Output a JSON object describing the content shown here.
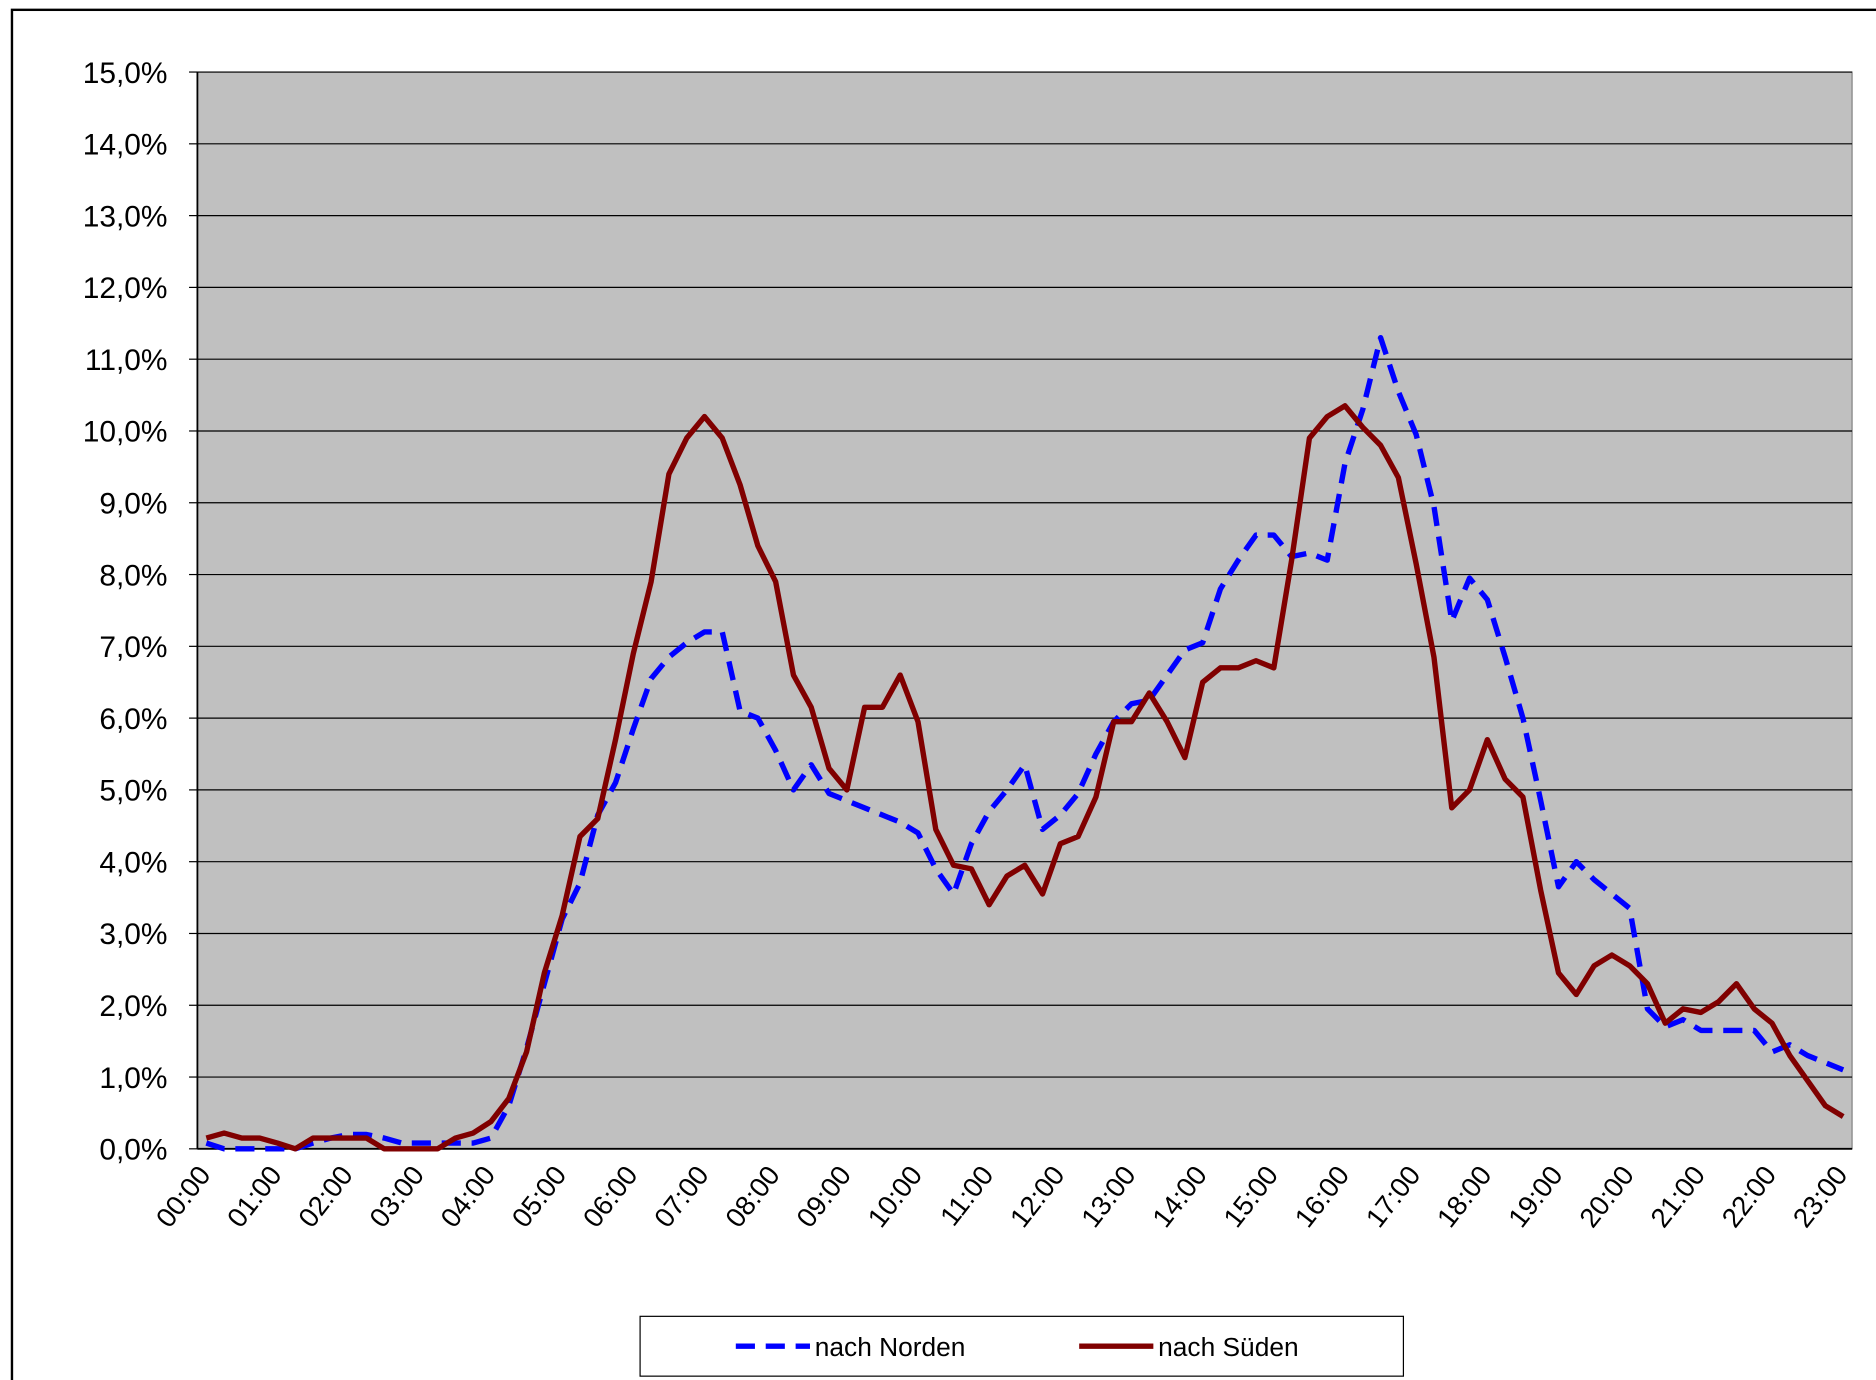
{
  "chart_data": {
    "type": "line",
    "categories": [
      "00:00",
      null,
      null,
      null,
      "01:00",
      null,
      null,
      null,
      "02:00",
      null,
      null,
      null,
      "03:00",
      null,
      null,
      null,
      "04:00",
      null,
      null,
      null,
      "05:00",
      null,
      null,
      null,
      "06:00",
      null,
      null,
      null,
      "07:00",
      null,
      null,
      null,
      "08:00",
      null,
      null,
      null,
      "09:00",
      null,
      null,
      null,
      "10:00",
      null,
      null,
      null,
      "11:00",
      null,
      null,
      null,
      "12:00",
      null,
      null,
      null,
      "13:00",
      null,
      null,
      null,
      "14:00",
      null,
      null,
      null,
      "15:00",
      null,
      null,
      null,
      "16:00",
      null,
      null,
      null,
      "17:00",
      null,
      null,
      null,
      "18:00",
      null,
      null,
      null,
      "19:00",
      null,
      null,
      null,
      "20:00",
      null,
      null,
      null,
      "21:00",
      null,
      null,
      null,
      "22:00",
      null,
      null,
      null,
      "23:00"
    ],
    "series": [
      {
        "name": "nach Norden",
        "color": "#0000ff",
        "style": "dashed",
        "values": [
          0.08,
          0,
          0,
          0,
          0,
          0,
          0.08,
          0.15,
          0.2,
          0.2,
          0.15,
          0.08,
          0.08,
          0.08,
          0.08,
          0.08,
          0.15,
          0.6,
          1.4,
          2.3,
          3.2,
          3.7,
          4.65,
          5.1,
          5.85,
          6.55,
          6.85,
          7.05,
          7.2,
          7.2,
          6.1,
          6.0,
          5.55,
          5.0,
          5.35,
          4.95,
          4.85,
          4.75,
          4.65,
          4.55,
          4.4,
          3.9,
          3.55,
          4.25,
          4.7,
          5.0,
          5.35,
          4.45,
          4.65,
          4.95,
          5.5,
          5.95,
          6.2,
          6.25,
          6.6,
          6.95,
          7.05,
          7.8,
          8.2,
          8.55,
          8.55,
          8.25,
          8.3,
          8.2,
          9.55,
          10.3,
          11.3,
          10.55,
          9.95,
          8.95,
          7.35,
          7.95,
          7.65,
          6.85,
          6.0,
          4.85,
          3.65,
          4.0,
          3.75,
          3.55,
          3.35,
          1.95,
          1.7,
          1.8,
          1.65,
          1.65,
          1.65,
          1.65,
          1.35,
          1.45,
          1.3,
          1.2,
          1.1
        ]
      },
      {
        "name": "nach Süden",
        "color": "#800000",
        "style": "solid",
        "values": [
          0.15,
          0.22,
          0.15,
          0.15,
          0.08,
          0,
          0.15,
          0.15,
          0.15,
          0.15,
          0,
          0,
          0,
          0,
          0.15,
          0.22,
          0.38,
          0.7,
          1.35,
          2.45,
          3.25,
          4.35,
          4.6,
          5.7,
          6.9,
          7.9,
          9.4,
          9.9,
          10.2,
          9.9,
          9.25,
          8.4,
          7.9,
          6.6,
          6.15,
          5.3,
          5.0,
          6.15,
          6.15,
          6.6,
          5.95,
          4.45,
          3.95,
          3.9,
          3.4,
          3.8,
          3.95,
          3.55,
          4.25,
          4.35,
          4.9,
          5.95,
          5.95,
          6.35,
          5.95,
          5.45,
          6.5,
          6.7,
          6.7,
          6.8,
          6.7,
          8.2,
          9.9,
          10.2,
          10.35,
          10.05,
          9.8,
          9.35,
          8.15,
          6.85,
          4.75,
          5.0,
          5.7,
          5.15,
          4.9,
          3.6,
          2.45,
          2.15,
          2.55,
          2.7,
          2.55,
          2.3,
          1.75,
          1.95,
          1.9,
          2.05,
          2.3,
          1.95,
          1.75,
          1.3,
          0.95,
          0.6,
          0.45
        ]
      }
    ],
    "ylim": [
      0,
      15
    ],
    "yticks": [
      {
        "value": 0,
        "label": "0,0%"
      },
      {
        "value": 1,
        "label": "1,0%"
      },
      {
        "value": 2,
        "label": "2,0%"
      },
      {
        "value": 3,
        "label": "3,0%"
      },
      {
        "value": 4,
        "label": "4,0%"
      },
      {
        "value": 5,
        "label": "5,0%"
      },
      {
        "value": 6,
        "label": "6,0%"
      },
      {
        "value": 7,
        "label": "7,0%"
      },
      {
        "value": 8,
        "label": "8,0%"
      },
      {
        "value": 9,
        "label": "9,0%"
      },
      {
        "value": 10,
        "label": "10,0%"
      },
      {
        "value": 11,
        "label": "11,0%"
      },
      {
        "value": 12,
        "label": "12,0%"
      },
      {
        "value": 13,
        "label": "13,0%"
      },
      {
        "value": 14,
        "label": "14,0%"
      },
      {
        "value": 15,
        "label": "15,0%"
      }
    ],
    "grid": true,
    "legend": "bottom",
    "background": "#c0c0c0"
  }
}
